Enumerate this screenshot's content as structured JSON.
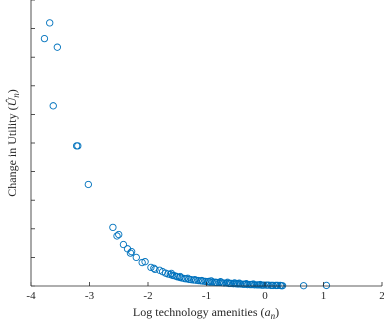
{
  "chart_data": {
    "type": "scatter",
    "xlabel": "Log technology amenities (a_n)",
    "ylabel": "Change in Utility (Û_n)",
    "xlim": [
      -4,
      2
    ],
    "ylim": [
      0,
      10
    ],
    "xticks": [
      -4,
      -3,
      -2,
      -1,
      0,
      1,
      2
    ],
    "xtick_labels": [
      "-4",
      "-3",
      "-2",
      "-1",
      "0",
      "1",
      "2"
    ],
    "yticks": [
      0,
      1,
      2,
      3,
      4,
      5,
      6,
      7,
      8,
      9,
      10
    ],
    "ytick_labels": [
      "",
      "",
      "",
      "",
      "",
      "",
      "",
      "",
      "",
      "",
      ""
    ],
    "grid": false,
    "marker_color": "#0072BD",
    "series": [
      {
        "x": [
          -3.77,
          -3.68,
          -3.55,
          -3.62,
          -3.22,
          -3.2,
          -3.02,
          -2.6,
          -2.53,
          -2.5,
          -2.42,
          -2.35,
          -2.3,
          -2.28,
          -2.2,
          -2.1,
          -2.05,
          -1.95,
          -1.9,
          -1.88,
          -1.8,
          -1.75,
          -1.7,
          -1.66,
          -1.62,
          -1.58,
          -1.55,
          -1.52,
          -1.5,
          -1.46,
          -1.42,
          -1.38,
          -1.35,
          -1.3,
          -1.26,
          -1.22,
          -1.18,
          -1.14,
          -1.1,
          -1.06,
          -1.02,
          -0.98,
          -0.94,
          -0.9,
          -0.86,
          -0.82,
          -0.78,
          -0.74,
          -0.7,
          -0.66,
          -0.62,
          -0.58,
          -0.54,
          -0.5,
          -0.46,
          -0.42,
          -0.38,
          -0.34,
          -0.3,
          -0.26,
          -0.22,
          -0.18,
          -0.14,
          -0.1,
          -0.06,
          -0.02,
          0.02,
          0.06,
          0.1,
          0.14,
          0.18,
          0.22,
          0.26,
          0.3,
          -1.6,
          -1.45,
          -1.32,
          -1.2,
          -1.08,
          -0.96,
          -0.84,
          -0.72,
          -0.6,
          -0.48,
          -0.36,
          -0.24,
          -0.12,
          -0.04,
          0.04,
          0.12,
          0.2,
          0.28,
          -0.92,
          -0.76,
          -0.64,
          -0.52,
          -0.44,
          -0.32,
          -0.2,
          -0.08,
          0.66,
          1.05
        ],
        "y": [
          8.65,
          9.2,
          8.35,
          6.3,
          4.9,
          4.9,
          3.55,
          2.05,
          1.75,
          1.8,
          1.45,
          1.3,
          1.15,
          1.2,
          1.0,
          0.82,
          0.85,
          0.65,
          0.62,
          0.58,
          0.55,
          0.5,
          0.45,
          0.42,
          0.4,
          0.37,
          0.36,
          0.34,
          0.32,
          0.3,
          0.28,
          0.26,
          0.25,
          0.23,
          0.22,
          0.21,
          0.2,
          0.19,
          0.18,
          0.17,
          0.16,
          0.15,
          0.14,
          0.14,
          0.13,
          0.12,
          0.12,
          0.11,
          0.1,
          0.1,
          0.09,
          0.09,
          0.08,
          0.08,
          0.07,
          0.07,
          0.06,
          0.06,
          0.05,
          0.05,
          0.05,
          0.04,
          0.04,
          0.04,
          0.03,
          0.03,
          0.03,
          0.03,
          0.02,
          0.02,
          0.02,
          0.02,
          0.02,
          0.01,
          0.44,
          0.33,
          0.27,
          0.22,
          0.19,
          0.16,
          0.13,
          0.11,
          0.09,
          0.08,
          0.06,
          0.05,
          0.04,
          0.03,
          0.03,
          0.02,
          0.02,
          0.01,
          0.18,
          0.15,
          0.13,
          0.11,
          0.1,
          0.08,
          0.07,
          0.05,
          0.01,
          0.02
        ]
      }
    ]
  }
}
